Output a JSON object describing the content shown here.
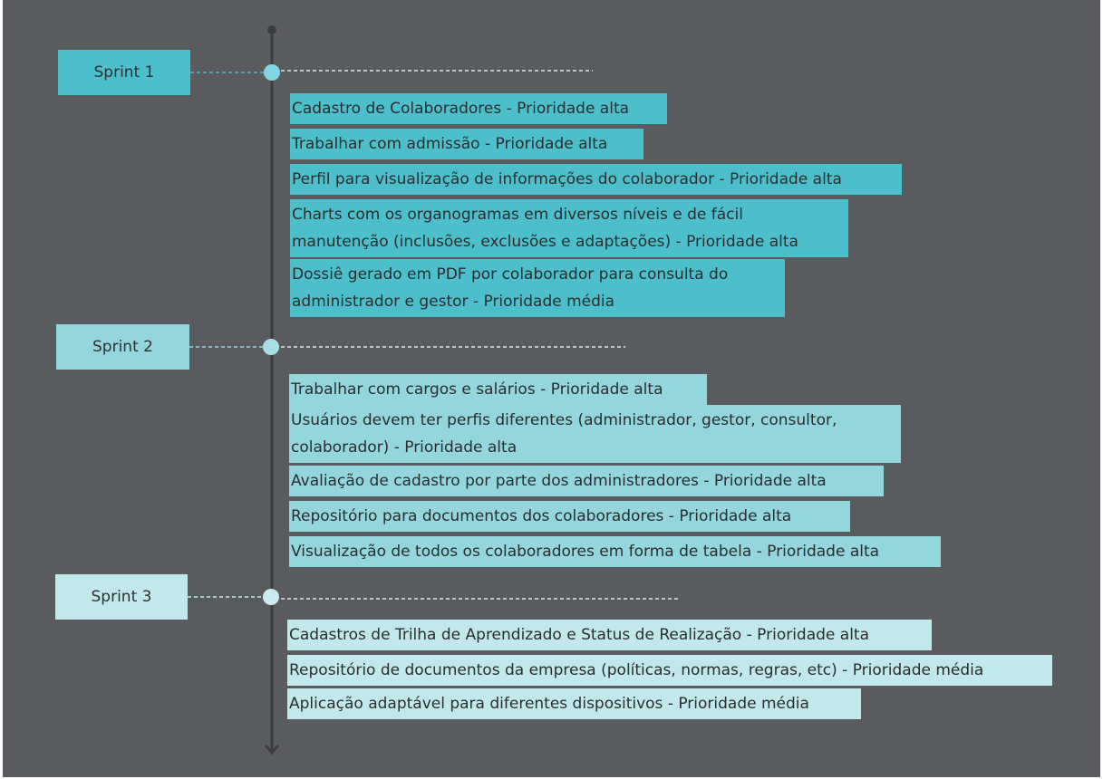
{
  "colors": {
    "background": "#5a5b5e",
    "axis": "#3c3d40",
    "sprint1": "#4cbfcb",
    "sprint2": "#93d6dc",
    "sprint3": "#c1e8eb",
    "dot_sprint1": "#7fd6df",
    "dot_sprint2": "#a9dfe4",
    "dot_sprint3": "#cbecee"
  },
  "sprints": [
    {
      "label": "Sprint 1",
      "items": [
        "Cadastro de Colaboradores - Prioridade alta",
        "Trabalhar com admissão - Prioridade alta",
        "Perfil para visualização de informações do colaborador - Prioridade alta",
        "Charts com os organogramas em diversos níveis e de fácil\nmanutenção (inclusões, exclusões e adaptações) - Prioridade alta",
        "Dossiê gerado em PDF por colaborador para consulta do\nadministrador e gestor - Prioridade média"
      ]
    },
    {
      "label": "Sprint 2",
      "items": [
        "Trabalhar com cargos e salários - Prioridade alta",
        "Usuários devem ter perfis diferentes (administrador, gestor, consultor,\ncolaborador) - Prioridade alta",
        "Avaliação de cadastro por parte dos administradores - Prioridade alta",
        "Repositório para documentos dos colaboradores - Prioridade alta",
        "Visualização de todos os colaboradores em forma de tabela - Prioridade alta"
      ]
    },
    {
      "label": "Sprint 3",
      "items": [
        "Cadastros de Trilha de Aprendizado e Status de Realização - Prioridade alta",
        "Repositório de documentos da empresa (políticas, normas, regras, etc) - Prioridade média",
        "Aplicação adaptável para diferentes dispositivos - Prioridade média"
      ]
    }
  ]
}
